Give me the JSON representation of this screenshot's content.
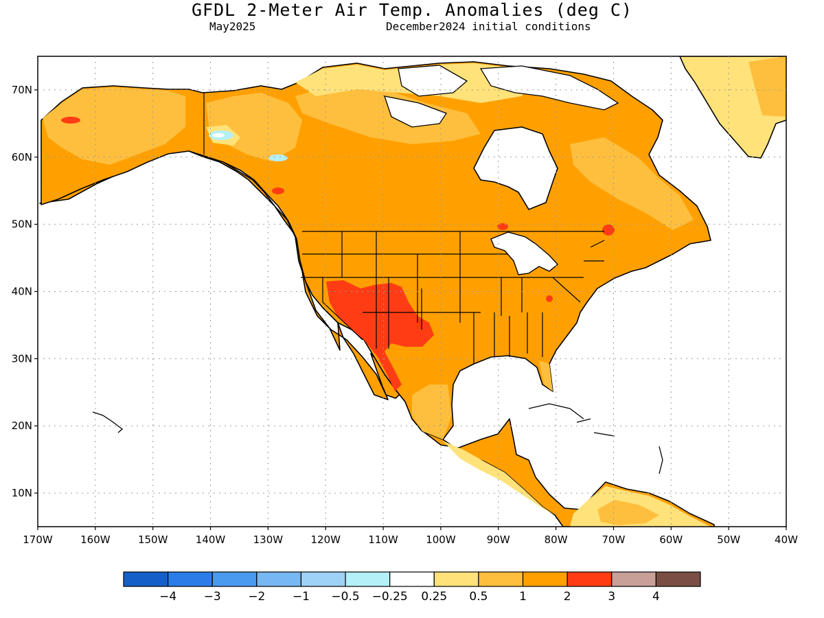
{
  "title": "GFDL 2-Meter Air Temp. Anomalies (deg C)",
  "valid_month": "May2025",
  "init_label": "December2024 initial conditions",
  "map": {
    "lon_range": [
      -170,
      -40
    ],
    "lat_range": [
      5,
      75
    ],
    "lon_ticks": [
      "170W",
      "160W",
      "150W",
      "140W",
      "130W",
      "120W",
      "110W",
      "100W",
      "90W",
      "80W",
      "70W",
      "60W",
      "50W",
      "40W"
    ],
    "lat_ticks": [
      "70N",
      "60N",
      "50N",
      "40N",
      "30N",
      "20N",
      "10N"
    ],
    "grid": "dotted",
    "dominant_anomaly": "+1 to +2 across most of North America",
    "hotspot_anomaly": "+2 to +3 over the US Southwest and northern Mexico"
  },
  "colorbar": {
    "labels": [
      "−4",
      "−3",
      "−2",
      "−1",
      "−0.5",
      "−0.25",
      "0.25",
      "0.5",
      "1",
      "2",
      "3",
      "4"
    ],
    "colors": [
      "#1560c8",
      "#2a7de8",
      "#4a9af0",
      "#78b8f2",
      "#9ed2f6",
      "#b4f0f8",
      "#ffffff",
      "#ffe27a",
      "#ffbf3e",
      "#ffa000",
      "#ff3c14",
      "#c8a098",
      "#7a4e44"
    ]
  },
  "palette": {
    "ocean": "#ffffff",
    "land_neutral": "#ffffff",
    "light_warm": "#ffe27a",
    "warm": "#ffbf3e",
    "strong_warm": "#ffa000",
    "very_warm": "#ff3c14",
    "cool": "#b4f0f8",
    "coast": "#000000"
  },
  "chart_data": {
    "type": "heatmap",
    "title": "GFDL 2-Meter Air Temp. Anomalies (deg C)",
    "xlabel": "",
    "ylabel": "",
    "xlim": [
      -170,
      -40
    ],
    "ylim": [
      5,
      75
    ],
    "x_ticks": [
      "170W",
      "160W",
      "150W",
      "140W",
      "130W",
      "120W",
      "110W",
      "100W",
      "90W",
      "80W",
      "70W",
      "60W",
      "50W",
      "40W"
    ],
    "y_ticks": [
      "70N",
      "60N",
      "50N",
      "40N",
      "30N",
      "20N",
      "10N"
    ],
    "colorbar_levels": [
      -4,
      -3,
      -2,
      -1,
      -0.5,
      -0.25,
      0.25,
      0.5,
      1,
      2,
      3,
      4
    ]
  }
}
